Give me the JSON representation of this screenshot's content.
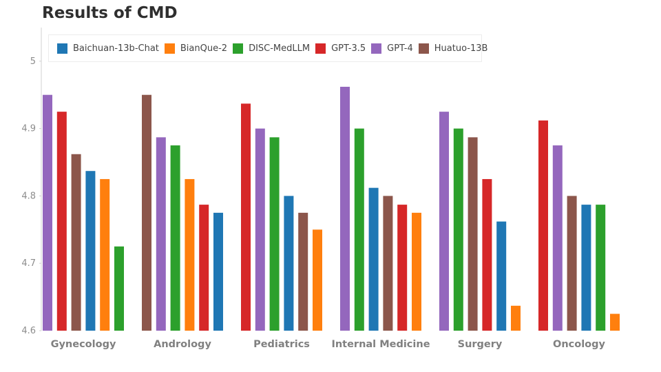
{
  "chart_data": {
    "type": "bar",
    "title": "Results of CMD",
    "xlabel": "",
    "ylabel": "",
    "ylim": [
      4.6,
      5.05
    ],
    "yticks": [
      4.6,
      4.7,
      4.8,
      4.9,
      5
    ],
    "ytick_labels": [
      "4.6",
      "4.7",
      "4.8",
      "4.9",
      "5"
    ],
    "legend_position": "top-left",
    "series_info": [
      {
        "name": "Baichuan-13b-Chat",
        "color": "#1f77b4"
      },
      {
        "name": "BianQue-2",
        "color": "#ff7f0e"
      },
      {
        "name": "DISC-MedLLM",
        "color": "#2ca02c"
      },
      {
        "name": "GPT-3.5",
        "color": "#d62728"
      },
      {
        "name": "GPT-4",
        "color": "#9467bd"
      },
      {
        "name": "Huatuo-13B",
        "color": "#8c564b"
      }
    ],
    "groups": [
      {
        "category": "Gynecology",
        "bars": [
          {
            "series": "GPT-4",
            "value": 4.95
          },
          {
            "series": "GPT-3.5",
            "value": 4.925
          },
          {
            "series": "Huatuo-13B",
            "value": 4.862
          },
          {
            "series": "Baichuan-13b-Chat",
            "value": 4.837
          },
          {
            "series": "BianQue-2",
            "value": 4.825
          },
          {
            "series": "DISC-MedLLM",
            "value": 4.725
          }
        ]
      },
      {
        "category": "Andrology",
        "bars": [
          {
            "series": "Huatuo-13B",
            "value": 4.95
          },
          {
            "series": "GPT-4",
            "value": 4.887
          },
          {
            "series": "DISC-MedLLM",
            "value": 4.875
          },
          {
            "series": "BianQue-2",
            "value": 4.825
          },
          {
            "series": "GPT-3.5",
            "value": 4.787
          },
          {
            "series": "Baichuan-13b-Chat",
            "value": 4.775
          }
        ]
      },
      {
        "category": "Pediatrics",
        "bars": [
          {
            "series": "GPT-3.5",
            "value": 4.937
          },
          {
            "series": "GPT-4",
            "value": 4.9
          },
          {
            "series": "DISC-MedLLM",
            "value": 4.887
          },
          {
            "series": "Baichuan-13b-Chat",
            "value": 4.8
          },
          {
            "series": "Huatuo-13B",
            "value": 4.775
          },
          {
            "series": "BianQue-2",
            "value": 4.75
          }
        ]
      },
      {
        "category": "Internal Medicine",
        "bars": [
          {
            "series": "GPT-4",
            "value": 4.962
          },
          {
            "series": "DISC-MedLLM",
            "value": 4.9
          },
          {
            "series": "Baichuan-13b-Chat",
            "value": 4.812
          },
          {
            "series": "Huatuo-13B",
            "value": 4.8
          },
          {
            "series": "GPT-3.5",
            "value": 4.787
          },
          {
            "series": "BianQue-2",
            "value": 4.775
          }
        ]
      },
      {
        "category": "Surgery",
        "bars": [
          {
            "series": "GPT-4",
            "value": 4.925
          },
          {
            "series": "DISC-MedLLM",
            "value": 4.9
          },
          {
            "series": "Huatuo-13B",
            "value": 4.887
          },
          {
            "series": "GPT-3.5",
            "value": 4.825
          },
          {
            "series": "Baichuan-13b-Chat",
            "value": 4.762
          },
          {
            "series": "BianQue-2",
            "value": 4.637
          }
        ]
      },
      {
        "category": "Oncology",
        "bars": [
          {
            "series": "GPT-3.5",
            "value": 4.912
          },
          {
            "series": "GPT-4",
            "value": 4.875
          },
          {
            "series": "Huatuo-13B",
            "value": 4.8
          },
          {
            "series": "Baichuan-13b-Chat",
            "value": 4.787
          },
          {
            "series": "DISC-MedLLM",
            "value": 4.787
          },
          {
            "series": "BianQue-2",
            "value": 4.625
          }
        ]
      }
    ]
  }
}
